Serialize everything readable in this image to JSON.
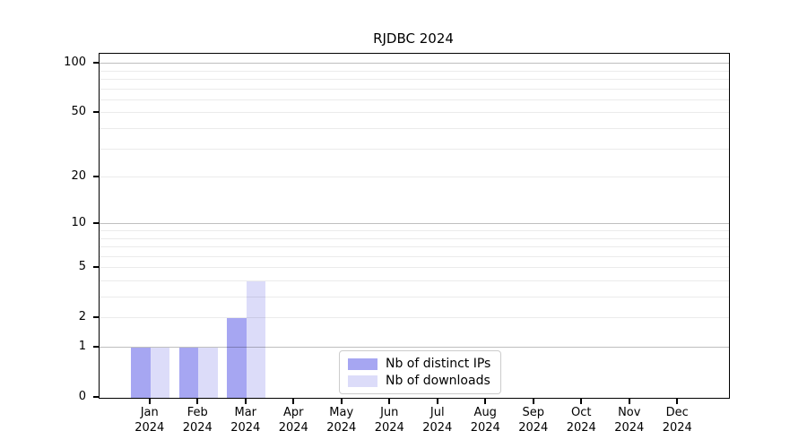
{
  "chart_data": {
    "type": "bar",
    "title": "RJDBC 2024",
    "categories": [
      "Jan",
      "Feb",
      "Mar",
      "Apr",
      "May",
      "Jun",
      "Jul",
      "Aug",
      "Sep",
      "Oct",
      "Nov",
      "Dec"
    ],
    "year": "2024",
    "series": [
      {
        "name": "Nb of distinct IPs",
        "color": "#a6a6f2",
        "values": [
          1,
          1,
          2,
          0,
          0,
          0,
          0,
          0,
          0,
          0,
          0,
          0
        ]
      },
      {
        "name": "Nb of downloads",
        "color": "#dcdcf9",
        "values": [
          1,
          1,
          4,
          0,
          0,
          0,
          0,
          0,
          0,
          0,
          0,
          0
        ]
      }
    ],
    "yscale": "log1p",
    "ylim": [
      0,
      115
    ],
    "yticks": [
      0,
      1,
      2,
      5,
      10,
      20,
      50,
      100
    ],
    "major_gridlines": [
      1,
      10,
      100
    ],
    "minor_gridlines": [
      2,
      3,
      4,
      5,
      6,
      7,
      8,
      9,
      20,
      30,
      40,
      50,
      60,
      70,
      80,
      90
    ],
    "grid": true,
    "legend_position": "lower center",
    "background_color": "#ffffff",
    "spine_color": "#000000"
  }
}
